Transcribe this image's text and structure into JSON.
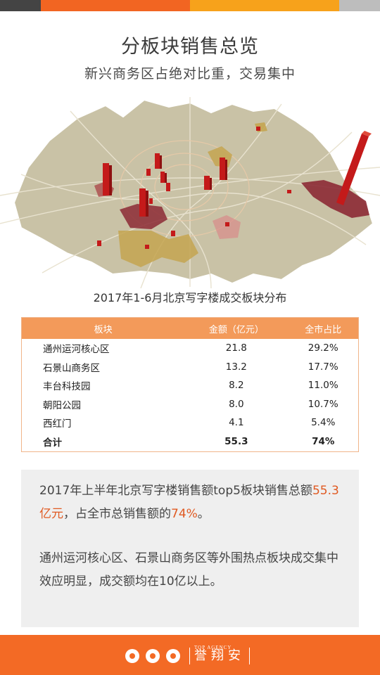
{
  "header": {
    "title": "分板块销售总览",
    "subtitle": "新兴商务区占绝对比重，交易集中"
  },
  "map": {
    "caption": "2017年1-6月北京写字楼成交板块分布"
  },
  "table": {
    "columns": [
      "板块",
      "金额（亿元）",
      "全市占比"
    ],
    "rows": [
      [
        "通州运河核心区",
        "21.8",
        "29.2%"
      ],
      [
        "石景山商务区",
        "13.2",
        "17.7%"
      ],
      [
        "丰台科技园",
        "8.2",
        "11.0%"
      ],
      [
        "朝阳公园",
        "8.0",
        "10.7%"
      ],
      [
        "西红门",
        "4.1",
        "5.4%"
      ]
    ],
    "total": [
      "合计",
      "55.3",
      "74%"
    ]
  },
  "summary": {
    "p1_before": "2017年上半年北京写字楼销售额top5板块销售总额",
    "p1_amount": "55.3亿元",
    "p1_middle": "，占全市总销售额的",
    "p1_pct": "74%",
    "p1_end": "。",
    "p2": "通州运河核心区、石景山商务区等外围热点板块成交集中效应明显，成交额均在10亿以上。"
  },
  "footer": {
    "brand_en": "TOP AGENCY",
    "brand_cn": "誉翔安"
  },
  "colors": {
    "accent_orange": "#f26522",
    "table_header": "#f39a5a",
    "footer": "#f36a25",
    "bar_red": "#c41a1a"
  }
}
